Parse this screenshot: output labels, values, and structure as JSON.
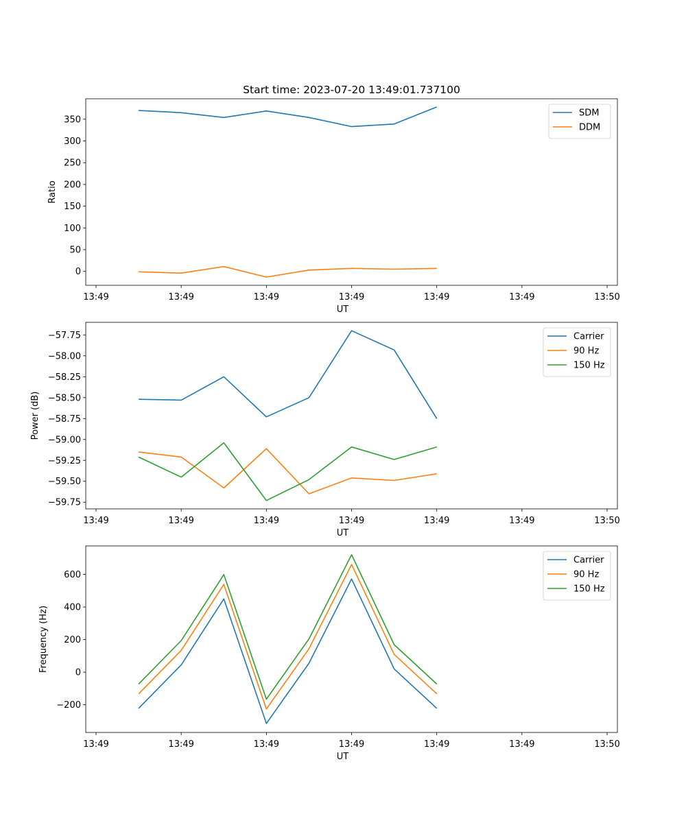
{
  "figure_title": "Start time: 2023-07-20 13:49:01.737100",
  "chart_data": [
    {
      "type": "line",
      "name": "ratio",
      "title": "Start time: 2023-07-20 13:49:01.737100",
      "xlabel": "UT",
      "ylabel": "Ratio",
      "x": [
        0.5,
        1.0,
        1.5,
        2.0,
        2.5,
        3.0,
        3.5,
        4.0
      ],
      "xlim": [
        0,
        6
      ],
      "xticks": [
        0,
        1,
        2,
        3,
        4,
        5,
        6
      ],
      "xtick_labels": [
        "13:49",
        "13:49",
        "13:49",
        "13:49",
        "13:49",
        "13:49",
        "13:50"
      ],
      "ylim": [
        -32,
        397
      ],
      "yticks": [
        0,
        50,
        100,
        150,
        200,
        250,
        300,
        350
      ],
      "ytick_labels": [
        "0",
        "50",
        "100",
        "150",
        "200",
        "250",
        "300",
        "350"
      ],
      "legend": "top-right",
      "series": [
        {
          "name": "SDM",
          "color": "#1f77b4",
          "values": [
            370,
            365,
            354,
            369,
            354,
            333,
            339,
            378
          ]
        },
        {
          "name": "DDM",
          "color": "#ff7f0e",
          "values": [
            -1,
            -4,
            11,
            -13,
            3,
            7,
            5,
            7
          ]
        }
      ]
    },
    {
      "type": "line",
      "name": "power",
      "xlabel": "UT",
      "ylabel": "Power (dB)",
      "x": [
        0.5,
        1.0,
        1.5,
        2.0,
        2.5,
        3.0,
        3.5,
        4.0
      ],
      "xlim": [
        0,
        6
      ],
      "xticks": [
        0,
        1,
        2,
        3,
        4,
        5,
        6
      ],
      "xtick_labels": [
        "13:49",
        "13:49",
        "13:49",
        "13:49",
        "13:49",
        "13:49",
        "13:50"
      ],
      "ylim": [
        -59.83,
        -57.6
      ],
      "yticks": [
        -59.75,
        -59.5,
        -59.25,
        -59.0,
        -58.75,
        -58.5,
        -58.25,
        -58.0,
        -57.75
      ],
      "ytick_labels": [
        "−59.75",
        "−59.50",
        "−59.25",
        "−59.00",
        "−58.75",
        "−58.50",
        "−58.25",
        "−58.00",
        "−57.75"
      ],
      "legend": "top-right",
      "series": [
        {
          "name": "Carrier",
          "color": "#1f77b4",
          "values": [
            -58.52,
            -58.53,
            -58.25,
            -58.73,
            -58.5,
            -57.7,
            -57.93,
            -58.75
          ]
        },
        {
          "name": "90 Hz",
          "color": "#ff7f0e",
          "values": [
            -59.15,
            -59.21,
            -59.58,
            -59.11,
            -59.65,
            -59.46,
            -59.49,
            -59.41
          ]
        },
        {
          "name": "150 Hz",
          "color": "#2ca02c",
          "values": [
            -59.21,
            -59.45,
            -59.04,
            -59.73,
            -59.48,
            -59.09,
            -59.24,
            -59.09
          ]
        }
      ]
    },
    {
      "type": "line",
      "name": "frequency",
      "xlabel": "UT",
      "ylabel": "Frequency (Hz)",
      "x": [
        0.5,
        1.0,
        1.5,
        2.0,
        2.5,
        3.0,
        3.5,
        4.0
      ],
      "xlim": [
        0,
        6
      ],
      "xticks": [
        0,
        1,
        2,
        3,
        4,
        5,
        6
      ],
      "xtick_labels": [
        "13:49",
        "13:49",
        "13:49",
        "13:49",
        "13:49",
        "13:49",
        "13:50"
      ],
      "ylim": [
        -370,
        775
      ],
      "yticks": [
        -200,
        0,
        200,
        400,
        600
      ],
      "ytick_labels": [
        "−200",
        "0",
        "200",
        "400",
        "600"
      ],
      "legend": "top-right",
      "series": [
        {
          "name": "Carrier",
          "color": "#1f77b4",
          "values": [
            -222,
            45,
            450,
            -315,
            55,
            572,
            20,
            -222
          ]
        },
        {
          "name": "90 Hz",
          "color": "#ff7f0e",
          "values": [
            -133,
            134,
            539,
            -226,
            144,
            661,
            109,
            -133
          ]
        },
        {
          "name": "150 Hz",
          "color": "#2ca02c",
          "values": [
            -73,
            194,
            599,
            -166,
            204,
            721,
            169,
            -73
          ]
        }
      ]
    }
  ]
}
